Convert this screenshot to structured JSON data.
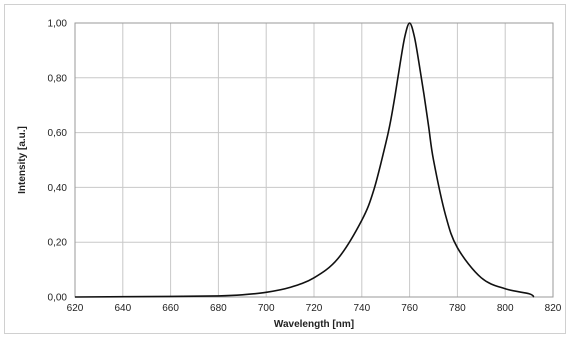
{
  "chart_data": {
    "type": "line",
    "title": "",
    "xlabel": "Wavelength [nm]",
    "ylabel": "Intensity [a.u.]",
    "xlim": [
      620,
      820
    ],
    "ylim": [
      0,
      1.0
    ],
    "x_ticks": [
      620,
      640,
      660,
      680,
      700,
      720,
      740,
      760,
      780,
      800,
      820
    ],
    "y_ticks": [
      0,
      0.2,
      0.4,
      0.6,
      0.8,
      1.0
    ],
    "x_tick_labels": [
      "620",
      "640",
      "660",
      "680",
      "700",
      "720",
      "740",
      "760",
      "780",
      "800",
      "820"
    ],
    "y_tick_labels": [
      "0,00",
      "0,20",
      "0,40",
      "0,60",
      "0,80",
      "1,00"
    ],
    "grid": true,
    "legend": "none",
    "series": [
      {
        "color": "#111111",
        "x": [
          620,
          660,
          680,
          690,
          700,
          710,
          720,
          730,
          740,
          745,
          750,
          752,
          754,
          756,
          758,
          760,
          762,
          764,
          766,
          768,
          770,
          775,
          780,
          790,
          800,
          810,
          812
        ],
        "y": [
          0.0,
          0.002,
          0.004,
          0.008,
          0.017,
          0.035,
          0.07,
          0.14,
          0.28,
          0.39,
          0.56,
          0.64,
          0.74,
          0.85,
          0.95,
          1.0,
          0.95,
          0.85,
          0.74,
          0.62,
          0.5,
          0.3,
          0.18,
          0.07,
          0.03,
          0.012,
          0.0
        ]
      }
    ]
  }
}
